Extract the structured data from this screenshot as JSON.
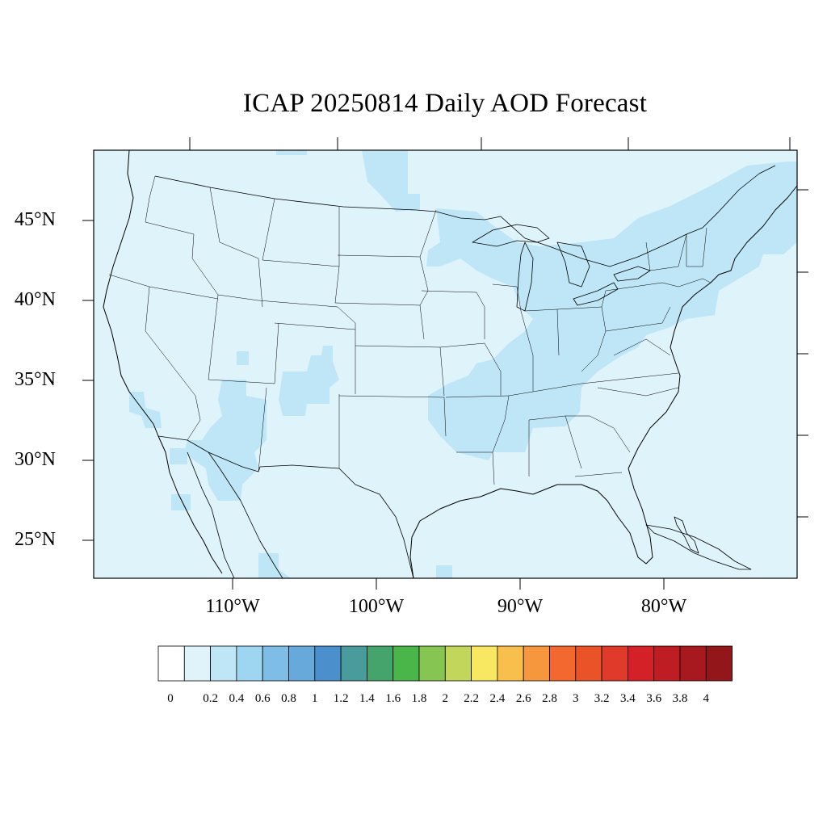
{
  "title": "ICAP 20250814 Daily AOD Forecast",
  "axes": {
    "lat_labels": [
      "45°N",
      "40°N",
      "35°N",
      "30°N",
      "25°N"
    ],
    "lon_labels": [
      "110°W",
      "100°W",
      "90°W",
      "80°W"
    ]
  },
  "map": {
    "ocean_land_fill": "#dff3fb",
    "plume_fill": "#bfe6f7",
    "boundary_color": "#000000"
  },
  "colorbar": {
    "labels": [
      "0",
      "0.2",
      "0.4",
      "0.6",
      "0.8",
      "1",
      "1.2",
      "1.4",
      "1.6",
      "1.8",
      "2",
      "2.2",
      "2.4",
      "2.6",
      "2.8",
      "3",
      "3.2",
      "3.4",
      "3.6",
      "3.8",
      "4"
    ],
    "colors": [
      "#ffffff",
      "#dff3fb",
      "#bfe6f7",
      "#9ed6f2",
      "#7dbde6",
      "#68a9dc",
      "#4b8fcc",
      "#4a9c9c",
      "#44a46c",
      "#4ab548",
      "#86c551",
      "#c3d65c",
      "#f8e760",
      "#f8bf4c",
      "#f6973e",
      "#f2682e",
      "#ea5228",
      "#e03a2a",
      "#d42128",
      "#be1d24",
      "#a8191f",
      "#93161b"
    ]
  }
}
